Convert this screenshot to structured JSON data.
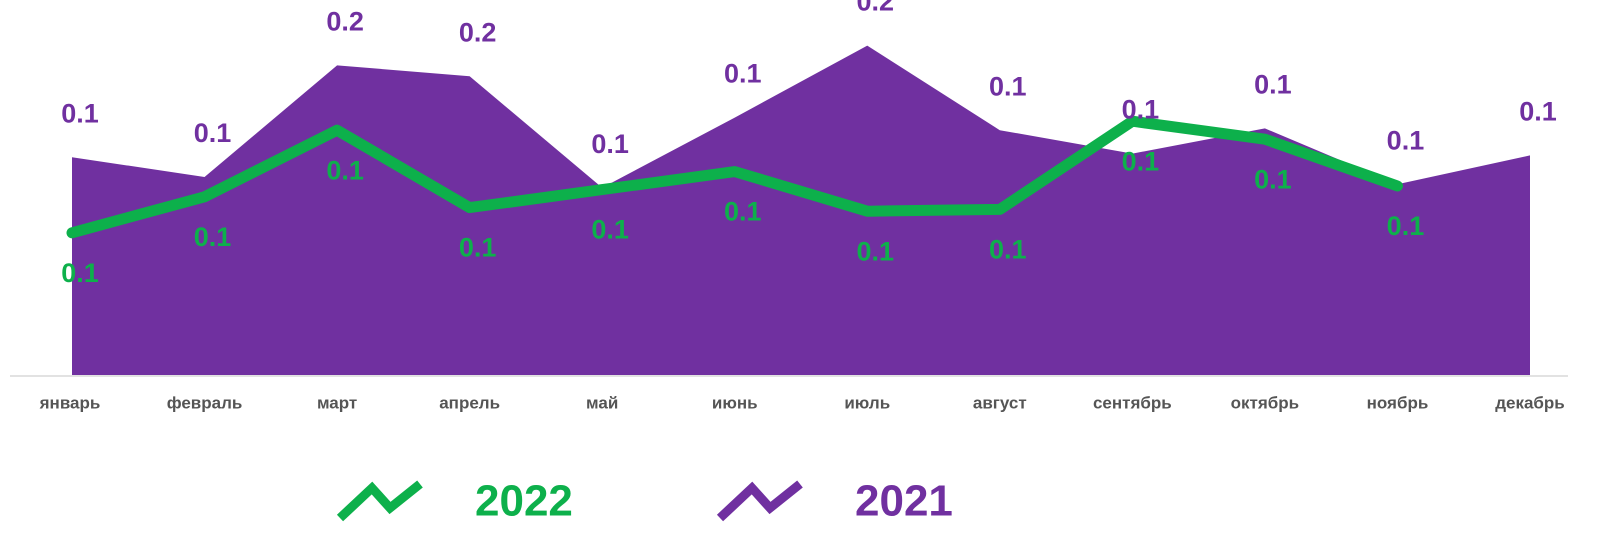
{
  "chart_data": {
    "type": "line-area",
    "categories": [
      "январь",
      "февраль",
      "март",
      "апрель",
      "май",
      "июнь",
      "июль",
      "август",
      "сентябрь",
      "октябрь",
      "ноябрь",
      "декабрь"
    ],
    "series": [
      {
        "name": "2022",
        "color": "#0db04b",
        "kind": "line",
        "values": [
          0.079,
          0.099,
          0.136,
          0.093,
          0.103,
          0.113,
          0.091,
          0.092,
          0.141,
          0.131,
          0.105,
          null
        ],
        "value_labels": [
          "0.1",
          "0.1",
          "0.1",
          "0.1",
          "0.1",
          "0.1",
          "0.1",
          "0.1",
          "0.1",
          "0.1",
          "0.1",
          null
        ]
      },
      {
        "name": "2021",
        "color": "#7030a0",
        "kind": "area",
        "values": [
          0.121,
          0.11,
          0.172,
          0.166,
          0.104,
          0.143,
          0.183,
          0.136,
          0.123,
          0.137,
          0.106,
          0.122
        ],
        "value_labels": [
          "0.1",
          "0.1",
          "0.2",
          "0.2",
          "0.1",
          "0.1",
          "0.2",
          "0.1",
          "0.1",
          "0.1",
          "0.1",
          "0.1"
        ]
      }
    ],
    "ylim": [
      0,
      0.21
    ]
  }
}
